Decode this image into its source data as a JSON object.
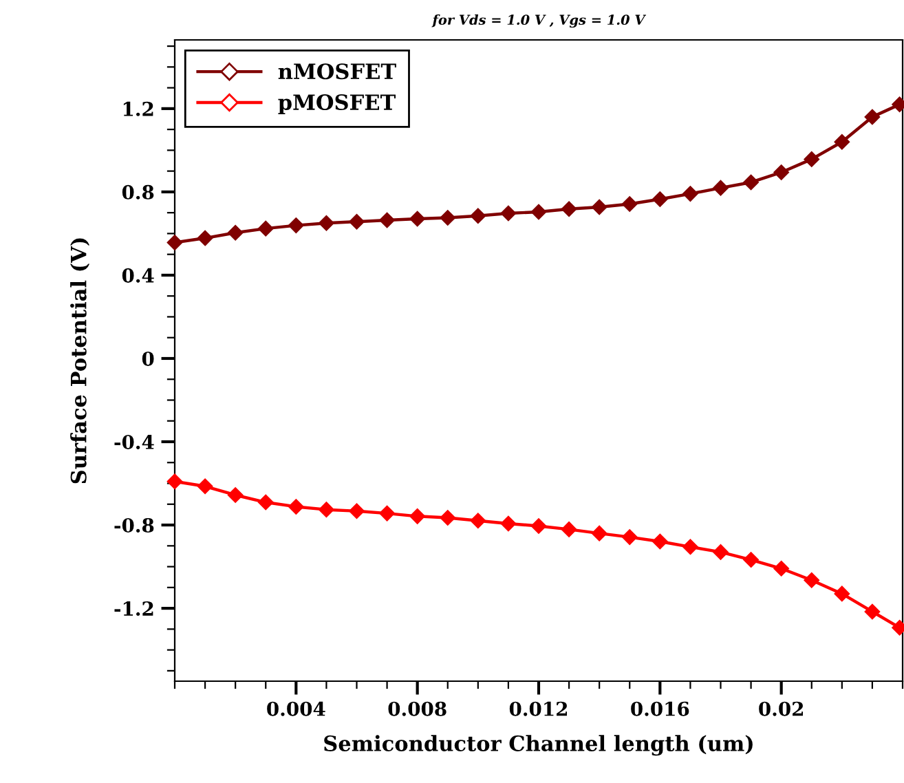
{
  "chart_data": {
    "type": "line",
    "title": "for Vds = 1.0 V , Vgs = 1.0 V",
    "xlabel": "Semiconductor Channel length (um)",
    "ylabel": "Surface Potential (V)",
    "xlim": [
      0,
      0.024
    ],
    "xticks": [
      0.004,
      0.008,
      0.012,
      0.016,
      0.02
    ],
    "ylim": [
      -1.55,
      1.53
    ],
    "yticks": [
      -1.2,
      -0.8,
      -0.4,
      0,
      0.4,
      0.8,
      1.2
    ],
    "grid": false,
    "legend": "top left",
    "marker": "diamond",
    "line_style": "solid",
    "series": [
      {
        "name": "nMOSFET",
        "color": "#800000",
        "x": [
          0,
          0.001,
          0.002,
          0.003,
          0.004,
          0.005,
          0.006,
          0.007,
          0.008,
          0.009,
          0.01,
          0.011,
          0.012,
          0.013,
          0.014,
          0.015,
          0.016,
          0.017,
          0.018,
          0.019,
          0.02,
          0.021,
          0.022,
          0.023,
          0.0239
        ],
        "values": [
          0.557,
          0.578,
          0.604,
          0.624,
          0.639,
          0.65,
          0.657,
          0.664,
          0.671,
          0.676,
          0.685,
          0.697,
          0.704,
          0.718,
          0.727,
          0.742,
          0.765,
          0.791,
          0.819,
          0.846,
          0.894,
          0.957,
          1.04,
          1.16,
          1.22
        ]
      },
      {
        "name": "pMOSFET",
        "color": "#ff0000",
        "x": [
          0,
          0.001,
          0.002,
          0.003,
          0.004,
          0.005,
          0.006,
          0.007,
          0.008,
          0.009,
          0.01,
          0.011,
          0.012,
          0.013,
          0.014,
          0.015,
          0.016,
          0.017,
          0.018,
          0.019,
          0.02,
          0.021,
          0.022,
          0.023,
          0.0239
        ],
        "values": [
          -0.591,
          -0.614,
          -0.656,
          -0.691,
          -0.712,
          -0.726,
          -0.733,
          -0.744,
          -0.758,
          -0.765,
          -0.779,
          -0.793,
          -0.805,
          -0.821,
          -0.84,
          -0.858,
          -0.879,
          -0.905,
          -0.93,
          -0.967,
          -1.009,
          -1.065,
          -1.13,
          -1.216,
          -1.293
        ]
      }
    ]
  }
}
